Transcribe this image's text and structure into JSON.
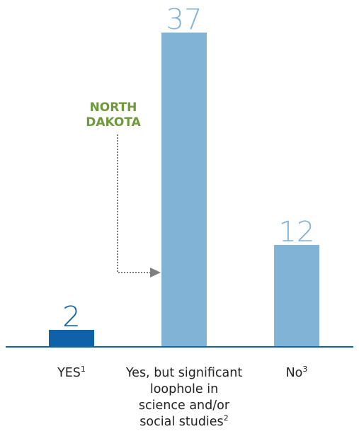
{
  "chart_data": {
    "type": "bar",
    "categories": [
      {
        "lines": [
          "YES"
        ],
        "sup": "1"
      },
      {
        "lines": [
          "Yes, but significant",
          "loophole in",
          "science and/or",
          "social studies"
        ],
        "sup": "2"
      },
      {
        "lines": [
          "No"
        ],
        "sup": "3"
      }
    ],
    "values": [
      2,
      37,
      12
    ],
    "value_labels": [
      "2",
      "37",
      "12"
    ],
    "colors": [
      "#0f62a8",
      "#80b3d6",
      "#80b3d6"
    ],
    "value_label_colors": [
      "#0f62a8",
      "#80b3d6",
      "#80b3d6"
    ],
    "axis_color": "#0f62a8",
    "annotation": {
      "lines": [
        "NORTH",
        "DAKOTA"
      ],
      "color": "#6e9a3a",
      "arrow_color": "#7f7f7f",
      "target_category": 1
    },
    "title": "",
    "xlabel": "",
    "ylabel": "",
    "ylim": [
      0,
      37
    ],
    "grid": false,
    "legend": "none"
  }
}
